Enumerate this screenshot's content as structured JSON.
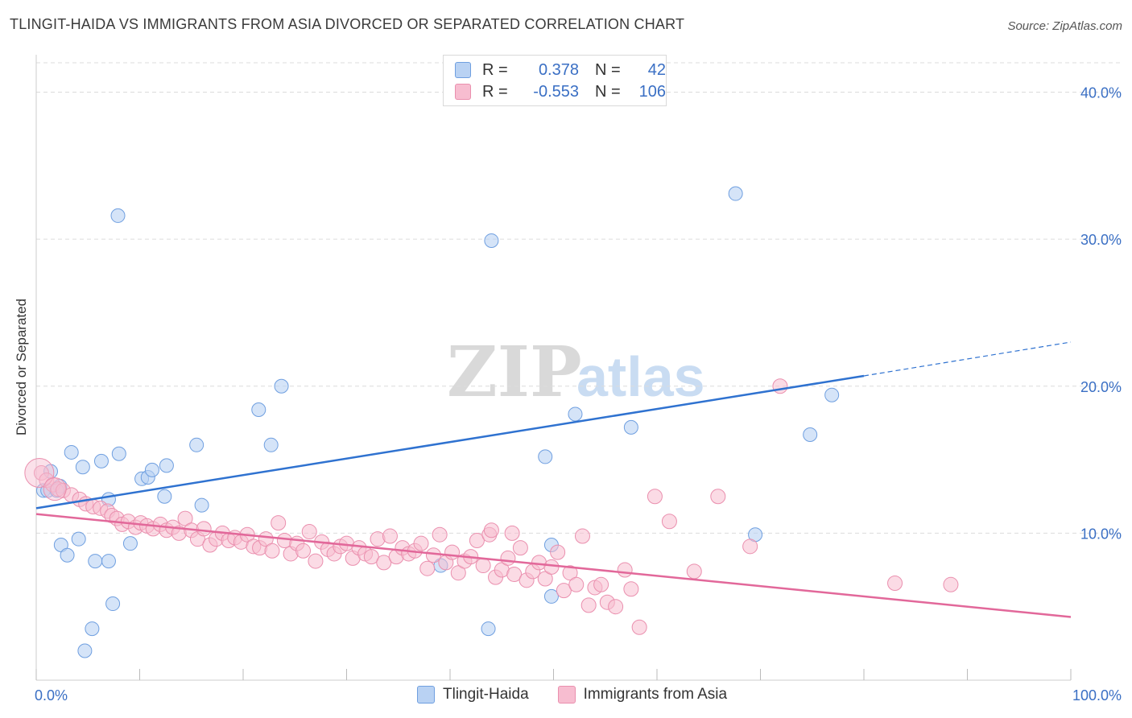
{
  "title": "TLINGIT-HAIDA VS IMMIGRANTS FROM ASIA DIVORCED OR SEPARATED CORRELATION CHART",
  "source": "Source: ZipAtlas.com",
  "watermark": {
    "zip": "ZIP",
    "atlas": "atlas"
  },
  "legend": {
    "rows": [
      {
        "r_label": "R =",
        "r_value": "0.378",
        "n_label": "N =",
        "n_value": "42"
      },
      {
        "r_label": "R =",
        "r_value": "-0.553",
        "n_label": "N =",
        "n_value": "106"
      }
    ]
  },
  "bottom_legend": [
    "Tlingit-Haida",
    "Immigrants from Asia"
  ],
  "colors": {
    "blue_fill": "#b9d2f3",
    "blue_stroke": "#6f9fe0",
    "blue_line": "#2f72d0",
    "pink_fill": "#f7bdd0",
    "pink_stroke": "#ea8fae",
    "pink_line": "#e2689a",
    "label": "#3a6fc4",
    "grid": "#dcdcdc"
  },
  "chart_data": {
    "type": "scatter",
    "xlabel": "",
    "ylabel": "Divorced or Separated",
    "xlim": [
      0,
      100
    ],
    "ylim": [
      0,
      42
    ],
    "x_tick_labels": [
      "0.0%",
      "100.0%"
    ],
    "y_ticks": [
      10,
      20,
      30,
      40
    ],
    "y_tick_labels": [
      "10.0%",
      "20.0%",
      "30.0%",
      "40.0%"
    ],
    "grid": true,
    "legend_position": "top-center",
    "series": [
      {
        "name": "Tlingit-Haida",
        "trend": {
          "x0": 0,
          "y0": 11.7,
          "x1": 80,
          "y1": 20.7,
          "dashed_to_x": 100,
          "dashed_to_y": 23.0
        },
        "points": [
          [
            0.7,
            12.9
          ],
          [
            1.4,
            14.2
          ],
          [
            1.1,
            12.9
          ],
          [
            2.3,
            13.2
          ],
          [
            2.0,
            12.9
          ],
          [
            3.4,
            15.5
          ],
          [
            4.5,
            14.5
          ],
          [
            6.3,
            14.9
          ],
          [
            8.0,
            15.4
          ],
          [
            7.0,
            12.3
          ],
          [
            10.2,
            13.7
          ],
          [
            10.8,
            13.8
          ],
          [
            11.2,
            14.3
          ],
          [
            12.6,
            14.6
          ],
          [
            12.4,
            12.5
          ],
          [
            15.5,
            16.0
          ],
          [
            16.0,
            11.9
          ],
          [
            2.4,
            9.2
          ],
          [
            3.0,
            8.5
          ],
          [
            4.1,
            9.6
          ],
          [
            5.7,
            8.1
          ],
          [
            7.0,
            8.1
          ],
          [
            9.1,
            9.3
          ],
          [
            7.4,
            5.2
          ],
          [
            5.4,
            3.5
          ],
          [
            4.7,
            2.0
          ],
          [
            7.9,
            31.6
          ],
          [
            21.5,
            18.4
          ],
          [
            23.7,
            20.0
          ],
          [
            22.7,
            16.0
          ],
          [
            39.1,
            7.8
          ],
          [
            44.0,
            29.9
          ],
          [
            43.7,
            3.5
          ],
          [
            49.2,
            15.2
          ],
          [
            49.8,
            9.2
          ],
          [
            49.8,
            5.7
          ],
          [
            52.1,
            18.1
          ],
          [
            57.5,
            17.2
          ],
          [
            67.6,
            33.1
          ],
          [
            69.5,
            9.9
          ],
          [
            74.8,
            16.7
          ],
          [
            76.9,
            19.4
          ]
        ]
      },
      {
        "name": "Immigrants from Asia",
        "trend": {
          "x0": 0,
          "y0": 11.3,
          "x1": 100,
          "y1": 4.3
        },
        "points": [
          [
            0.5,
            14.1
          ],
          [
            1.0,
            13.6
          ],
          [
            1.6,
            13.3
          ],
          [
            2.1,
            13.0
          ],
          [
            2.6,
            12.9
          ],
          [
            3.4,
            12.6
          ],
          [
            4.2,
            12.3
          ],
          [
            4.8,
            12.0
          ],
          [
            5.5,
            11.8
          ],
          [
            6.2,
            11.7
          ],
          [
            6.9,
            11.5
          ],
          [
            7.3,
            11.2
          ],
          [
            7.8,
            11.0
          ],
          [
            8.3,
            10.6
          ],
          [
            8.9,
            10.8
          ],
          [
            9.6,
            10.4
          ],
          [
            10.1,
            10.7
          ],
          [
            10.7,
            10.5
          ],
          [
            11.3,
            10.3
          ],
          [
            12.0,
            10.6
          ],
          [
            12.6,
            10.2
          ],
          [
            13.2,
            10.4
          ],
          [
            13.8,
            10.0
          ],
          [
            14.4,
            11.0
          ],
          [
            15.0,
            10.2
          ],
          [
            15.6,
            9.6
          ],
          [
            16.2,
            10.3
          ],
          [
            16.8,
            9.2
          ],
          [
            17.4,
            9.6
          ],
          [
            18.0,
            10.0
          ],
          [
            18.6,
            9.5
          ],
          [
            19.2,
            9.7
          ],
          [
            19.8,
            9.4
          ],
          [
            20.4,
            9.9
          ],
          [
            21.0,
            9.1
          ],
          [
            21.6,
            9.0
          ],
          [
            22.2,
            9.6
          ],
          [
            22.8,
            8.8
          ],
          [
            23.4,
            10.7
          ],
          [
            24.0,
            9.5
          ],
          [
            24.6,
            8.6
          ],
          [
            25.2,
            9.3
          ],
          [
            25.8,
            8.8
          ],
          [
            26.4,
            10.1
          ],
          [
            27.0,
            8.1
          ],
          [
            27.6,
            9.4
          ],
          [
            28.2,
            8.9
          ],
          [
            28.8,
            8.6
          ],
          [
            29.4,
            9.1
          ],
          [
            30.0,
            9.3
          ],
          [
            30.6,
            8.3
          ],
          [
            31.2,
            9.0
          ],
          [
            31.8,
            8.6
          ],
          [
            32.4,
            8.4
          ],
          [
            33.0,
            9.6
          ],
          [
            33.6,
            8.0
          ],
          [
            34.2,
            9.8
          ],
          [
            34.8,
            8.4
          ],
          [
            35.4,
            9.0
          ],
          [
            36.0,
            8.6
          ],
          [
            36.6,
            8.8
          ],
          [
            37.2,
            9.3
          ],
          [
            37.8,
            7.6
          ],
          [
            38.4,
            8.5
          ],
          [
            39.0,
            9.9
          ],
          [
            39.6,
            8.0
          ],
          [
            40.2,
            8.7
          ],
          [
            40.8,
            7.3
          ],
          [
            41.4,
            8.1
          ],
          [
            42.0,
            8.4
          ],
          [
            42.6,
            9.5
          ],
          [
            43.2,
            7.8
          ],
          [
            43.8,
            9.9
          ],
          [
            44.4,
            7.0
          ],
          [
            45.0,
            7.5
          ],
          [
            45.6,
            8.3
          ],
          [
            46.2,
            7.2
          ],
          [
            46.8,
            9.0
          ],
          [
            47.4,
            6.8
          ],
          [
            48.0,
            7.4
          ],
          [
            48.6,
            8.0
          ],
          [
            49.2,
            6.9
          ],
          [
            49.8,
            7.7
          ],
          [
            50.4,
            8.7
          ],
          [
            51.0,
            6.1
          ],
          [
            51.6,
            7.3
          ],
          [
            52.2,
            6.5
          ],
          [
            52.8,
            9.8
          ],
          [
            53.4,
            5.1
          ],
          [
            54.0,
            6.3
          ],
          [
            54.6,
            6.5
          ],
          [
            55.2,
            5.3
          ],
          [
            56.0,
            5.0
          ],
          [
            56.9,
            7.5
          ],
          [
            57.5,
            6.2
          ],
          [
            58.3,
            3.6
          ],
          [
            59.8,
            12.5
          ],
          [
            61.2,
            10.8
          ],
          [
            63.6,
            7.4
          ],
          [
            65.9,
            12.5
          ],
          [
            69.0,
            9.1
          ],
          [
            71.9,
            20.0
          ],
          [
            83.0,
            6.6
          ],
          [
            88.4,
            6.5
          ],
          [
            46.0,
            10.0
          ],
          [
            44.0,
            10.2
          ]
        ]
      }
    ]
  }
}
